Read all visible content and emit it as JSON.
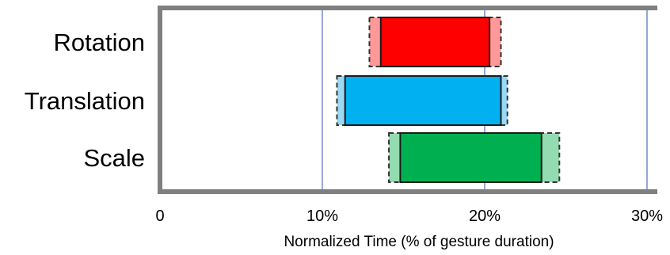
{
  "chart_data": {
    "type": "bar",
    "orientation": "horizontal",
    "subtype": "range-with-uncertainty",
    "title": "",
    "xlabel": "Normalized Time (% of gesture duration)",
    "ylabel": "",
    "xlim": [
      0,
      30
    ],
    "xticks": [
      {
        "value": 0,
        "label": "0"
      },
      {
        "value": 10,
        "label": "10%"
      },
      {
        "value": 20,
        "label": "20%"
      },
      {
        "value": 30,
        "label": "30%"
      }
    ],
    "grid": "vertical",
    "legend": "none",
    "series": [
      {
        "category": "Rotation",
        "start": 13.6,
        "end": 20.3,
        "outer_start": 12.9,
        "outer_end": 21.0,
        "color": "#ff0000",
        "outer_color": "#ff9999"
      },
      {
        "category": "Translation",
        "start": 11.4,
        "end": 21.0,
        "outer_start": 10.9,
        "outer_end": 21.4,
        "color": "#00b0f0",
        "outer_color": "#99d9f5"
      },
      {
        "category": "Scale",
        "start": 14.8,
        "end": 23.5,
        "outer_start": 14.1,
        "outer_end": 24.6,
        "color": "#00b050",
        "outer_color": "#93dcb1"
      }
    ]
  }
}
